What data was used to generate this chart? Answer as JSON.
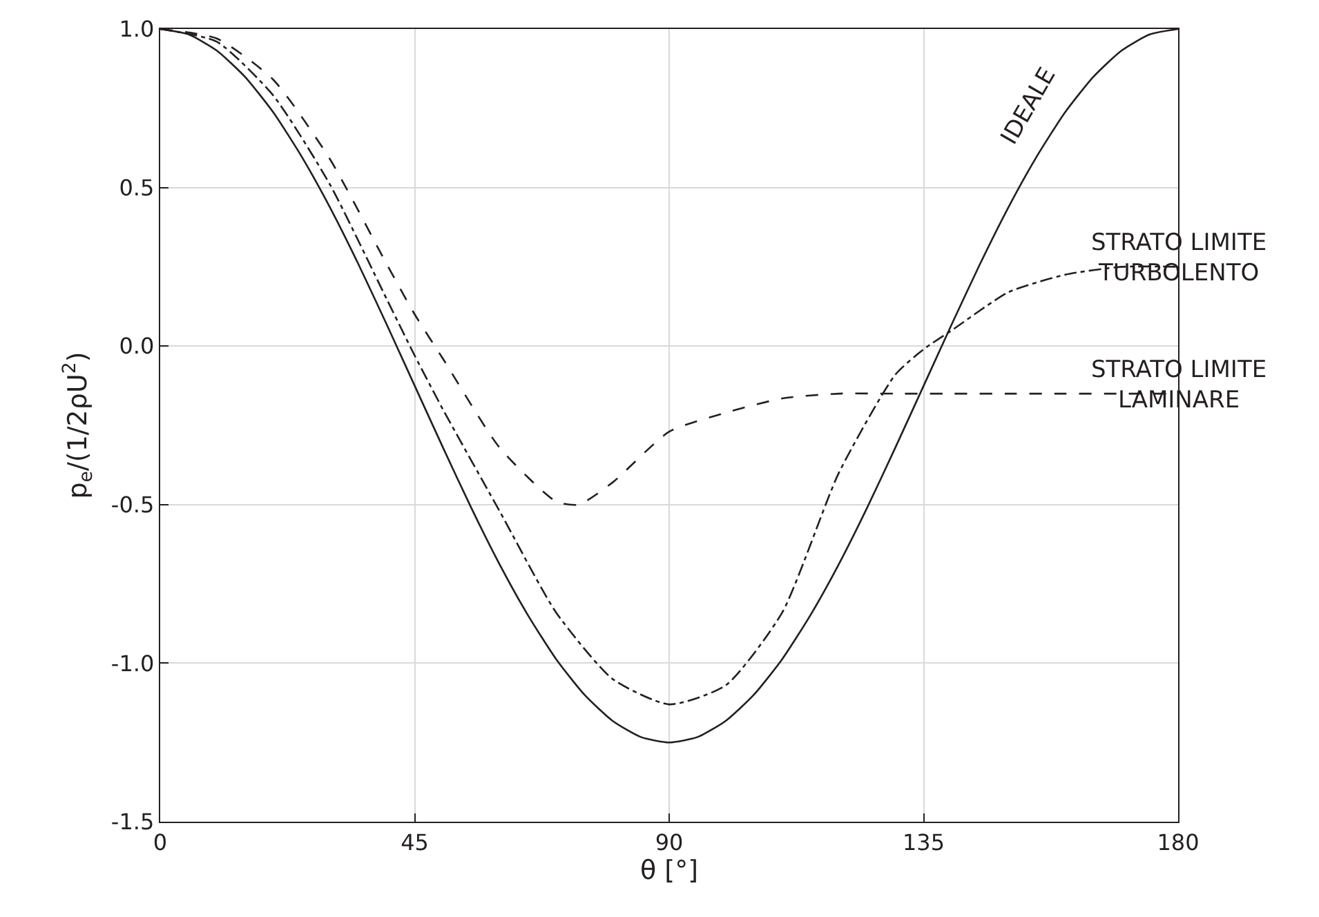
{
  "chart_data": {
    "type": "line",
    "xlabel": "θ [°]",
    "ylabel": "p$_{e}$/(1/2ρU$^{2}$)",
    "xlim": [
      0,
      180
    ],
    "xticks": [
      0,
      45,
      90,
      135,
      180
    ],
    "ylim": [
      -1.5,
      1.0
    ],
    "yticks": [
      {
        "value": -1.5,
        "label": "-1.5"
      },
      {
        "value": -1.0,
        "label": "-1.0"
      },
      {
        "value": -0.5,
        "label": "-0.5"
      },
      {
        "value": 0,
        "label": "0.0"
      },
      {
        "value": 0.5,
        "label": "0.5"
      },
      {
        "value": 1.0,
        "label": "1.0"
      }
    ],
    "grid": true,
    "marker": "none",
    "series": [
      {
        "color": "#231f20",
        "line_style": "solid",
        "x": [
          0,
          5,
          10,
          15,
          20,
          25,
          30,
          35,
          40,
          45,
          50,
          55,
          60,
          65,
          70,
          75,
          80,
          85,
          90,
          95,
          100,
          105,
          110,
          115,
          120,
          125,
          130,
          135,
          140,
          145,
          150,
          155,
          160,
          165,
          170,
          175,
          180
        ],
        "values": [
          1,
          0.983,
          0.932,
          0.849,
          0.737,
          0.598,
          0.438,
          0.26,
          0.07,
          -0.125,
          -0.32,
          -0.51,
          -0.688,
          -0.848,
          -0.987,
          -1.099,
          -1.182,
          -1.233,
          -1.25,
          -1.233,
          -1.182,
          -1.099,
          -0.987,
          -0.848,
          -0.688,
          -0.51,
          -0.32,
          -0.125,
          0.07,
          0.26,
          0.438,
          0.598,
          0.737,
          0.849,
          0.932,
          0.983,
          1
        ]
      },
      {
        "color": "#231f20",
        "line_style": "dashdot",
        "x": [
          0,
          10,
          20,
          30,
          40,
          45,
          50,
          60,
          70,
          80,
          90,
          100,
          110,
          120,
          130,
          135,
          140,
          150,
          160,
          170,
          180
        ],
        "values": [
          1,
          0.96,
          0.79,
          0.51,
          0.15,
          -0.03,
          -0.2,
          -0.52,
          -0.84,
          -1.05,
          -1.13,
          -1.07,
          -0.84,
          -0.4,
          -0.09,
          -0.01,
          0.05,
          0.17,
          0.225,
          0.25,
          0.25
        ]
      },
      {
        "color": "#231f20",
        "line_style": "dashed",
        "x": [
          0,
          10,
          20,
          30,
          40,
          45,
          50,
          60,
          70,
          74,
          80,
          90,
          100,
          110,
          120,
          130,
          140,
          150,
          160,
          170,
          180
        ],
        "values": [
          1,
          0.97,
          0.84,
          0.59,
          0.26,
          0.1,
          -0.04,
          -0.32,
          -0.49,
          -0.5,
          -0.43,
          -0.27,
          -0.21,
          -0.165,
          -0.15,
          -0.15,
          -0.15,
          -0.15,
          -0.15,
          -0.15,
          -0.15
        ]
      }
    ],
    "annotations": [
      "IDEALE",
      "STRATO LIMITE\nTURBOLENTO",
      "STRATO LIMITE\nLAMINARE"
    ]
  }
}
